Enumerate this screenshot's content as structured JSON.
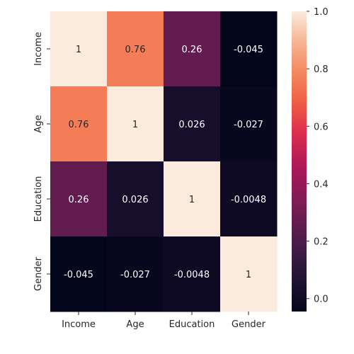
{
  "chart_data": {
    "type": "heatmap",
    "rows": [
      "Income",
      "Age",
      "Education",
      "Gender"
    ],
    "columns": [
      "Income",
      "Age",
      "Education",
      "Gender"
    ],
    "values": [
      [
        1,
        0.76,
        0.26,
        -0.045
      ],
      [
        0.76,
        1,
        0.026,
        -0.027
      ],
      [
        0.26,
        0.026,
        1,
        -0.0048
      ],
      [
        -0.045,
        -0.027,
        -0.0048,
        1
      ]
    ],
    "cell_labels": [
      [
        "1",
        "0.76",
        "0.26",
        "-0.045"
      ],
      [
        "0.76",
        "1",
        "0.026",
        "-0.027"
      ],
      [
        "0.26",
        "0.026",
        "1",
        "-0.0048"
      ],
      [
        "-0.045",
        "-0.027",
        "-0.0048",
        "1"
      ]
    ],
    "colorbar": {
      "range": [
        -0.045,
        1
      ],
      "ticks": [
        0.0,
        0.2,
        0.4,
        0.6,
        0.8,
        1.0
      ],
      "tick_labels": [
        "0.0",
        "0.2",
        "0.4",
        "0.6",
        "0.8",
        "1.0"
      ]
    },
    "colormap": "rocket",
    "title": "",
    "xlabel": "",
    "ylabel": ""
  }
}
